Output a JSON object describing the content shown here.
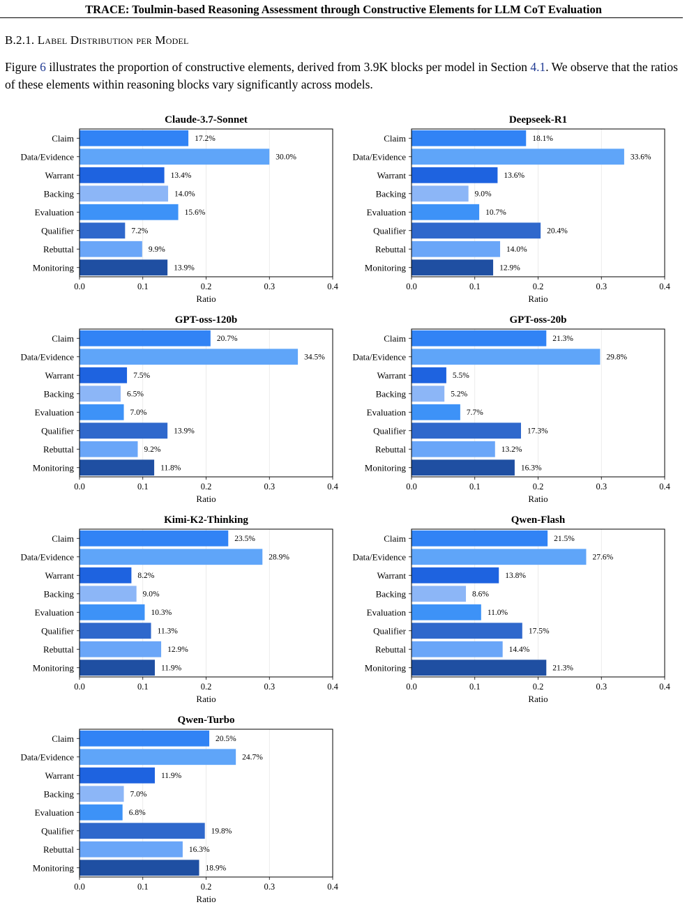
{
  "header": {
    "running_title": "TRACE: Toulmin-based Reasoning Assessment through Constructive Elements for LLM CoT Evaluation"
  },
  "section": {
    "number": "B.2.1.",
    "title": "Label Distribution per Model"
  },
  "paragraph": {
    "part1": "Figure ",
    "figure_ref": "6",
    "part2": " illustrates the proportion of constructive elements, derived from 3.9K blocks per model in Section ",
    "section_ref": "4.1",
    "part3": ". We observe that the ratios of these elements within reasoning blocks vary significantly across models."
  },
  "colors": {
    "Claim": "#3183f5",
    "Data/Evidence": "#5fa5f9",
    "Warrant": "#1e63e0",
    "Backing": "#8cb6f7",
    "Evaluation": "#3d92f7",
    "Qualifier": "#2f68cc",
    "Rebuttal": "#6aa6f8",
    "Monitoring": "#1f4fa2"
  },
  "chart_data": [
    {
      "type": "bar",
      "orientation": "horizontal",
      "title": "Claude-3.7-Sonnet",
      "xlabel": "Ratio",
      "xlim": [
        0,
        0.4
      ],
      "xticks": [
        "0.0",
        "0.1",
        "0.2",
        "0.3",
        "0.4"
      ],
      "grid": true,
      "categories": [
        "Claim",
        "Data/Evidence",
        "Warrant",
        "Backing",
        "Evaluation",
        "Qualifier",
        "Rebuttal",
        "Monitoring"
      ],
      "values": [
        0.172,
        0.3,
        0.134,
        0.14,
        0.156,
        0.072,
        0.099,
        0.139
      ],
      "labels": [
        "17.2%",
        "30.0%",
        "13.4%",
        "14.0%",
        "15.6%",
        "7.2%",
        "9.9%",
        "13.9%"
      ]
    },
    {
      "type": "bar",
      "orientation": "horizontal",
      "title": "Deepseek-R1",
      "xlabel": "Ratio",
      "xlim": [
        0,
        0.4
      ],
      "xticks": [
        "0.0",
        "0.1",
        "0.2",
        "0.3",
        "0.4"
      ],
      "grid": true,
      "categories": [
        "Claim",
        "Data/Evidence",
        "Warrant",
        "Backing",
        "Evaluation",
        "Qualifier",
        "Rebuttal",
        "Monitoring"
      ],
      "values": [
        0.181,
        0.336,
        0.136,
        0.09,
        0.107,
        0.204,
        0.14,
        0.129
      ],
      "labels": [
        "18.1%",
        "33.6%",
        "13.6%",
        "9.0%",
        "10.7%",
        "20.4%",
        "14.0%",
        "12.9%"
      ]
    },
    {
      "type": "bar",
      "orientation": "horizontal",
      "title": "GPT-oss-120b",
      "xlabel": "Ratio",
      "xlim": [
        0,
        0.4
      ],
      "xticks": [
        "0.0",
        "0.1",
        "0.2",
        "0.3",
        "0.4"
      ],
      "grid": true,
      "categories": [
        "Claim",
        "Data/Evidence",
        "Warrant",
        "Backing",
        "Evaluation",
        "Qualifier",
        "Rebuttal",
        "Monitoring"
      ],
      "values": [
        0.207,
        0.345,
        0.075,
        0.065,
        0.07,
        0.139,
        0.092,
        0.118
      ],
      "labels": [
        "20.7%",
        "34.5%",
        "7.5%",
        "6.5%",
        "7.0%",
        "13.9%",
        "9.2%",
        "11.8%"
      ]
    },
    {
      "type": "bar",
      "orientation": "horizontal",
      "title": "GPT-oss-20b",
      "xlabel": "Ratio",
      "xlim": [
        0,
        0.4
      ],
      "xticks": [
        "0.0",
        "0.1",
        "0.2",
        "0.3",
        "0.4"
      ],
      "grid": true,
      "categories": [
        "Claim",
        "Data/Evidence",
        "Warrant",
        "Backing",
        "Evaluation",
        "Qualifier",
        "Rebuttal",
        "Monitoring"
      ],
      "values": [
        0.213,
        0.298,
        0.055,
        0.052,
        0.077,
        0.173,
        0.132,
        0.163
      ],
      "labels": [
        "21.3%",
        "29.8%",
        "5.5%",
        "5.2%",
        "7.7%",
        "17.3%",
        "13.2%",
        "16.3%"
      ]
    },
    {
      "type": "bar",
      "orientation": "horizontal",
      "title": "Kimi-K2-Thinking",
      "xlabel": "Ratio",
      "xlim": [
        0,
        0.4
      ],
      "xticks": [
        "0.0",
        "0.1",
        "0.2",
        "0.3",
        "0.4"
      ],
      "grid": true,
      "categories": [
        "Claim",
        "Data/Evidence",
        "Warrant",
        "Backing",
        "Evaluation",
        "Qualifier",
        "Rebuttal",
        "Monitoring"
      ],
      "values": [
        0.235,
        0.289,
        0.082,
        0.09,
        0.103,
        0.113,
        0.129,
        0.119
      ],
      "labels": [
        "23.5%",
        "28.9%",
        "8.2%",
        "9.0%",
        "10.3%",
        "11.3%",
        "12.9%",
        "11.9%"
      ]
    },
    {
      "type": "bar",
      "orientation": "horizontal",
      "title": "Qwen-Flash",
      "xlabel": "Ratio",
      "xlim": [
        0,
        0.4
      ],
      "xticks": [
        "0.0",
        "0.1",
        "0.2",
        "0.3",
        "0.4"
      ],
      "grid": true,
      "categories": [
        "Claim",
        "Data/Evidence",
        "Warrant",
        "Backing",
        "Evaluation",
        "Qualifier",
        "Rebuttal",
        "Monitoring"
      ],
      "values": [
        0.215,
        0.276,
        0.138,
        0.086,
        0.11,
        0.175,
        0.144,
        0.213
      ],
      "labels": [
        "21.5%",
        "27.6%",
        "13.8%",
        "8.6%",
        "11.0%",
        "17.5%",
        "14.4%",
        "21.3%"
      ]
    },
    {
      "type": "bar",
      "orientation": "horizontal",
      "title": "Qwen-Turbo",
      "xlabel": "Ratio",
      "xlim": [
        0,
        0.4
      ],
      "xticks": [
        "0.0",
        "0.1",
        "0.2",
        "0.3",
        "0.4"
      ],
      "grid": true,
      "categories": [
        "Claim",
        "Data/Evidence",
        "Warrant",
        "Backing",
        "Evaluation",
        "Qualifier",
        "Rebuttal",
        "Monitoring"
      ],
      "values": [
        0.205,
        0.247,
        0.119,
        0.07,
        0.068,
        0.198,
        0.163,
        0.189
      ],
      "labels": [
        "20.5%",
        "24.7%",
        "11.9%",
        "7.0%",
        "6.8%",
        "19.8%",
        "16.3%",
        "18.9%"
      ]
    }
  ]
}
